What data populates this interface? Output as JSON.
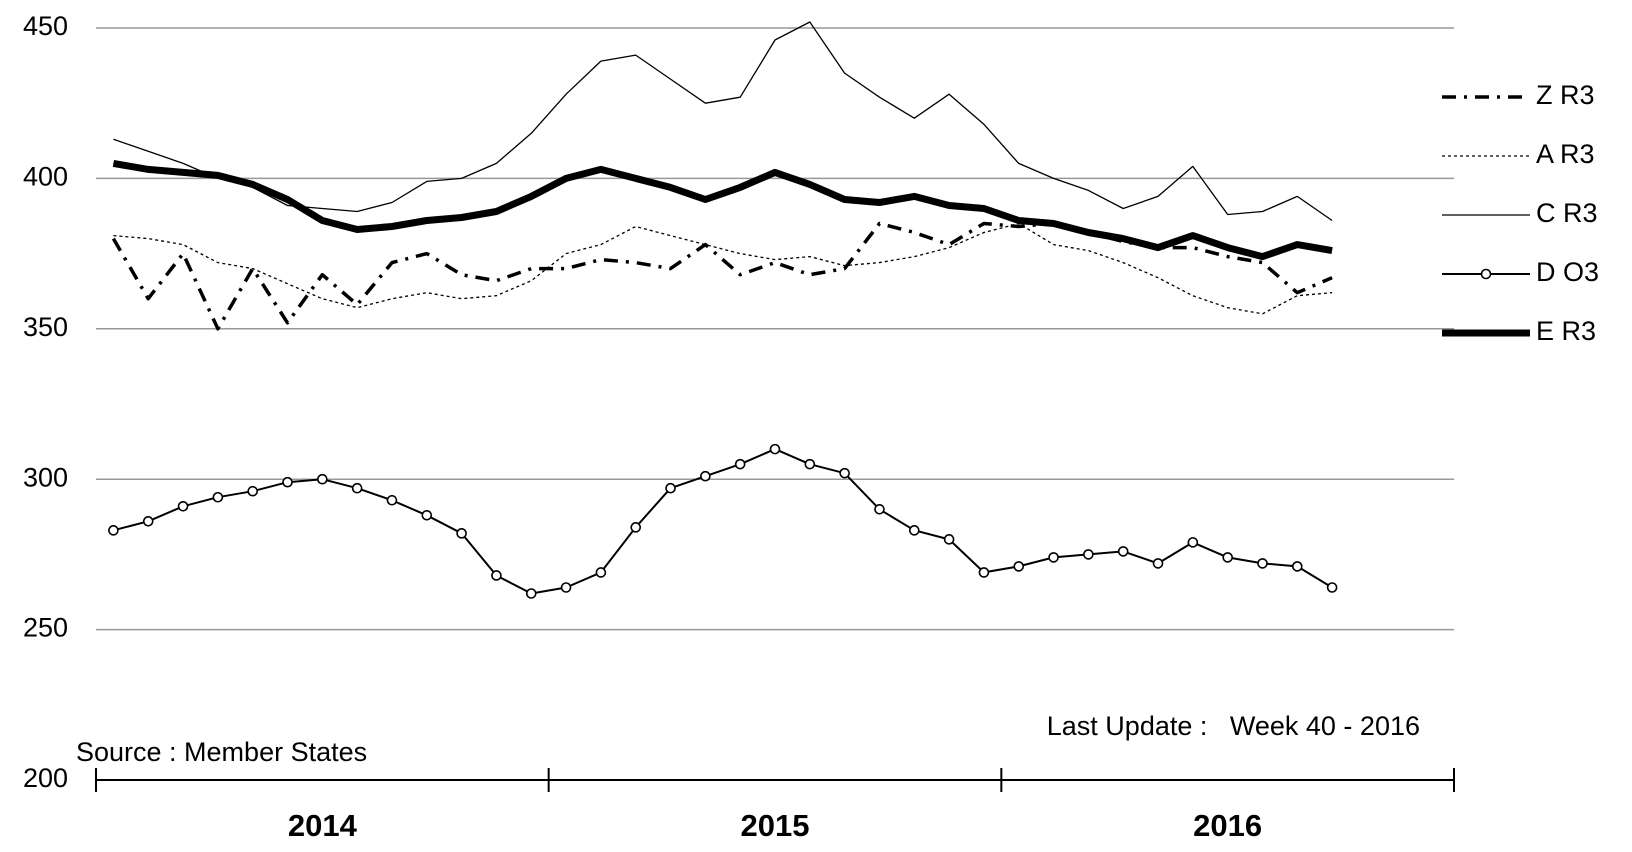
{
  "chart_data": {
    "type": "line",
    "categories": [
      null,
      null,
      null,
      null,
      null,
      null,
      "2014",
      null,
      null,
      null,
      null,
      null,
      null,
      null,
      null,
      null,
      null,
      null,
      null,
      "2015",
      null,
      null,
      null,
      null,
      null,
      null,
      null,
      null,
      null,
      null,
      null,
      null,
      "2016",
      null,
      null,
      null,
      null,
      null,
      null
    ],
    "series": [
      {
        "name": "Z R3",
        "color": "#000000",
        "values": [
          380,
          360,
          375,
          350,
          370,
          352,
          368,
          358,
          372,
          375,
          368,
          366,
          370,
          370,
          373,
          372,
          370,
          378,
          368,
          372,
          368,
          370,
          385,
          382,
          378,
          385,
          384,
          385,
          382,
          379,
          377,
          377,
          374,
          372,
          362,
          367,
          null,
          null,
          null
        ]
      },
      {
        "name": "A R3",
        "color": "#000000",
        "values": [
          381,
          380,
          378,
          372,
          370,
          365,
          360,
          357,
          360,
          362,
          360,
          361,
          366,
          375,
          378,
          384,
          381,
          378,
          375,
          373,
          374,
          371,
          372,
          374,
          377,
          382,
          385,
          378,
          376,
          372,
          367,
          361,
          357,
          355,
          361,
          362,
          null,
          null,
          null
        ]
      },
      {
        "name": "C R3",
        "color": "#000000",
        "values": [
          413,
          409,
          405,
          400,
          397,
          391,
          390,
          389,
          392,
          399,
          400,
          405,
          415,
          428,
          439,
          441,
          433,
          425,
          427,
          446,
          452,
          435,
          427,
          420,
          428,
          418,
          405,
          400,
          396,
          390,
          394,
          404,
          388,
          389,
          394,
          386,
          null,
          null,
          null
        ]
      },
      {
        "name": "D O3",
        "color": "#000000",
        "values": [
          283,
          286,
          291,
          294,
          296,
          299,
          300,
          297,
          293,
          288,
          282,
          268,
          262,
          264,
          269,
          284,
          297,
          301,
          305,
          310,
          305,
          302,
          290,
          283,
          280,
          269,
          271,
          274,
          275,
          276,
          272,
          279,
          274,
          272,
          271,
          264,
          null,
          null,
          null
        ]
      },
      {
        "name": "E R3",
        "color": "#000000",
        "values": [
          405,
          403,
          402,
          401,
          398,
          393,
          386,
          383,
          384,
          386,
          387,
          389,
          394,
          400,
          403,
          400,
          397,
          393,
          397,
          402,
          398,
          393,
          392,
          394,
          391,
          390,
          386,
          385,
          382,
          380,
          377,
          381,
          377,
          374,
          378,
          376,
          null,
          null,
          null
        ]
      }
    ],
    "ylim": [
      200,
      450
    ],
    "yticks": [
      200,
      250,
      300,
      350,
      400,
      450
    ],
    "grid": true,
    "annotations": [
      "Source : Member States",
      "Last Update :   Week 40 - 2016"
    ],
    "legend": "right"
  }
}
